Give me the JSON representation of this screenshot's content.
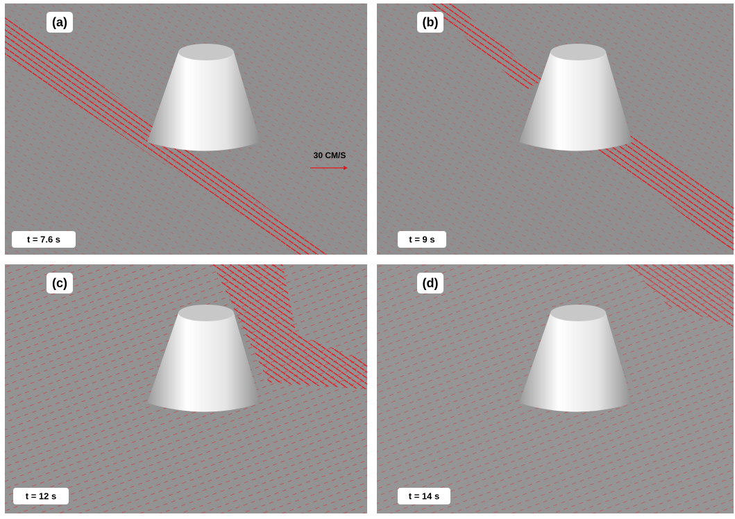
{
  "panels": [
    {
      "label": "(a)",
      "time": "t = 7.6 s"
    },
    {
      "label": "(b)",
      "time": "t = 9 s"
    },
    {
      "label": "(c)",
      "time": "t = 12 s"
    },
    {
      "label": "(d)",
      "time": "t = 14 s"
    }
  ],
  "scale_label": "30 CM/S"
}
